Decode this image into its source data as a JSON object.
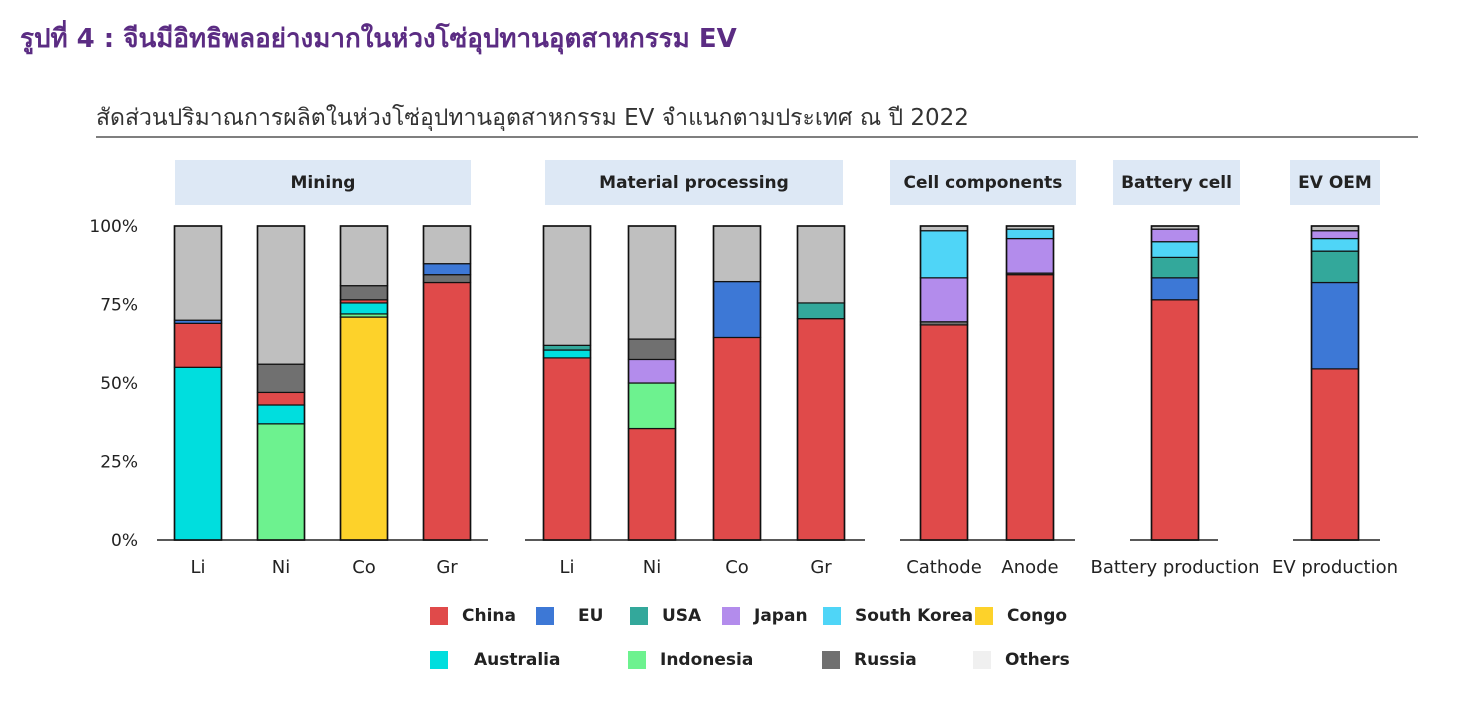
{
  "figure_title": "รูปที่ 4 : จีนมีอิทธิพลอย่างมากในห่วงโซ่อุปทานอุตสาหกรรม EV",
  "chart_data": {
    "type": "bar",
    "stacked": true,
    "title": "สัดส่วนปริมาณการผลิตในห่วงโซ่อุปทานอุตสาหกรรม EV จำแนกตามประเทศ ณ ปี 2022",
    "y_ticks": [
      "100%",
      "75%",
      "50%",
      "25%",
      "0%"
    ],
    "ylim": [
      0,
      100
    ],
    "legend_order": [
      "China",
      "EU",
      "USA",
      "Japan",
      "South Korea",
      "Congo",
      "Australia",
      "Indonesia",
      "Russia",
      "Others"
    ],
    "colors": {
      "China": "#e04a4a",
      "EU": "#3d78d6",
      "USA": "#33a89b",
      "Japan": "#b38cec",
      "South Korea": "#4fd5f7",
      "Congo": "#fdd22a",
      "Australia": "#00dede",
      "Indonesia": "#6df28f",
      "Russia": "#707070",
      "Others": "#bfbfbf"
    },
    "groups": [
      {
        "label": "Mining",
        "bars": [
          {
            "category": "Li",
            "segments": [
              [
                "Australia",
                55
              ],
              [
                "China",
                14
              ],
              [
                "EU",
                1
              ],
              [
                "Others",
                30
              ]
            ]
          },
          {
            "category": "Ni",
            "segments": [
              [
                "Indonesia",
                37
              ],
              [
                "Australia",
                6
              ],
              [
                "China",
                4
              ],
              [
                "Russia",
                9
              ],
              [
                "Others",
                44
              ]
            ]
          },
          {
            "category": "Co",
            "segments": [
              [
                "Congo",
                71
              ],
              [
                "Indonesia",
                1
              ],
              [
                "Australia",
                3.5
              ],
              [
                "China",
                1
              ],
              [
                "Russia",
                4.5
              ],
              [
                "Others",
                19
              ]
            ]
          },
          {
            "category": "Gr",
            "segments": [
              [
                "China",
                82
              ],
              [
                "Russia",
                2.5
              ],
              [
                "EU",
                3.5
              ],
              [
                "Others",
                12
              ]
            ]
          }
        ]
      },
      {
        "label": "Material processing",
        "bars": [
          {
            "category": "Li",
            "segments": [
              [
                "China",
                58
              ],
              [
                "Australia",
                2.5
              ],
              [
                "USA",
                1.5
              ],
              [
                "Others",
                38
              ]
            ]
          },
          {
            "category": "Ni",
            "segments": [
              [
                "China",
                35.5
              ],
              [
                "Indonesia",
                14.5
              ],
              [
                "Japan",
                7.5
              ],
              [
                "Russia",
                6.5
              ],
              [
                "Others",
                36
              ]
            ]
          },
          {
            "category": "Co",
            "segments": [
              [
                "China",
                64.5
              ],
              [
                "EU",
                17.8
              ],
              [
                "Others",
                17.7
              ]
            ]
          },
          {
            "category": "Gr",
            "segments": [
              [
                "China",
                70.5
              ],
              [
                "USA",
                5
              ],
              [
                "Others",
                24.5
              ]
            ]
          }
        ]
      },
      {
        "label": "Cell components",
        "bars": [
          {
            "category": "Cathode",
            "segments": [
              [
                "China",
                68.5
              ],
              [
                "Russia",
                1
              ],
              [
                "Japan",
                14
              ],
              [
                "South Korea",
                15
              ],
              [
                "Others",
                1.5
              ]
            ]
          },
          {
            "category": "Anode",
            "segments": [
              [
                "China",
                84.5
              ],
              [
                "Russia",
                0.5
              ],
              [
                "Japan",
                11
              ],
              [
                "South Korea",
                3
              ],
              [
                "Others",
                1
              ]
            ]
          }
        ]
      },
      {
        "label": "Battery cell",
        "bars": [
          {
            "category": "Battery production",
            "segments": [
              [
                "China",
                76.5
              ],
              [
                "EU",
                7
              ],
              [
                "USA",
                6.5
              ],
              [
                "South Korea",
                5
              ],
              [
                "Japan",
                4
              ],
              [
                "Others",
                1
              ]
            ]
          }
        ]
      },
      {
        "label": "EV OEM",
        "bars": [
          {
            "category": "EV production",
            "segments": [
              [
                "China",
                54.5
              ],
              [
                "EU",
                27.5
              ],
              [
                "USA",
                10
              ],
              [
                "South Korea",
                4
              ],
              [
                "Japan",
                2.5
              ],
              [
                "Others",
                1.5
              ]
            ]
          }
        ]
      }
    ]
  }
}
